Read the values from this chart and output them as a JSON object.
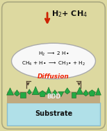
{
  "figsize": [
    1.54,
    1.89
  ],
  "dpi": 100,
  "bg_color": "#ddd9a0",
  "bg_edge_color": "#aaa880",
  "ellipse_facecolor": "#f8f8f8",
  "ellipse_edgecolor": "#aaaaaa",
  "substrate_facecolor": "#b0e0e8",
  "substrate_edgecolor": "#88bbcc",
  "bdd_layer_facecolor": "#c0aa80",
  "title_text": "H$_2$+ CH$_4$",
  "title_color": "#111111",
  "title_fontsize": 8.0,
  "arrow_color": "#cc2200",
  "eq1": "H$_2$ $\\longrightarrow$ 2 H$\\bullet$",
  "eq2": "CH$_4$ + H$\\bullet$ $\\longrightarrow$ CH$_3$$\\bullet$ + H$_2$",
  "eq_fontsize": 5.2,
  "diffusion_text": "Diffusion",
  "diffusion_color": "#ee2200",
  "diffusion_fontsize": 6.5,
  "bdd_text": "BDD",
  "bdd_color": "#eeeeee",
  "bdd_fontsize": 6.0,
  "substrate_text": "Substrate",
  "substrate_text_color": "#111111",
  "substrate_fontsize": 7.0,
  "diamond_fill": "#22aa44",
  "diamond_edge": "#116622",
  "bracket_color": "#554433",
  "diffusion_arrow_color": "#554433"
}
